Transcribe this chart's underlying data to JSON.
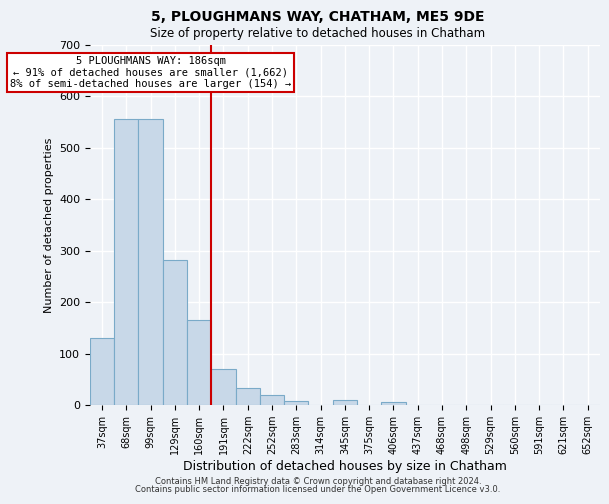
{
  "title": "5, PLOUGHMANS WAY, CHATHAM, ME5 9DE",
  "subtitle": "Size of property relative to detached houses in Chatham",
  "xlabel": "Distribution of detached houses by size in Chatham",
  "ylabel": "Number of detached properties",
  "bar_labels": [
    "37sqm",
    "68sqm",
    "99sqm",
    "129sqm",
    "160sqm",
    "191sqm",
    "222sqm",
    "252sqm",
    "283sqm",
    "314sqm",
    "345sqm",
    "375sqm",
    "406sqm",
    "437sqm",
    "468sqm",
    "498sqm",
    "529sqm",
    "560sqm",
    "591sqm",
    "621sqm",
    "652sqm"
  ],
  "bar_values": [
    130,
    557,
    557,
    282,
    165,
    70,
    33,
    19,
    8,
    0,
    10,
    0,
    5,
    0,
    0,
    0,
    0,
    0,
    0,
    0,
    0
  ],
  "bar_color": "#c8d8e8",
  "bar_edge_color": "#7aaac8",
  "vline_bar_index": 5,
  "vline_color": "#cc0000",
  "annotation_title": "5 PLOUGHMANS WAY: 186sqm",
  "annotation_line1": "← 91% of detached houses are smaller (1,662)",
  "annotation_line2": "8% of semi-detached houses are larger (154) →",
  "box_edge_color": "#cc0000",
  "ylim": [
    0,
    700
  ],
  "yticks": [
    0,
    100,
    200,
    300,
    400,
    500,
    600,
    700
  ],
  "background_color": "#eef2f7",
  "grid_color": "#ffffff",
  "footer1": "Contains HM Land Registry data © Crown copyright and database right 2024.",
  "footer2": "Contains public sector information licensed under the Open Government Licence v3.0."
}
